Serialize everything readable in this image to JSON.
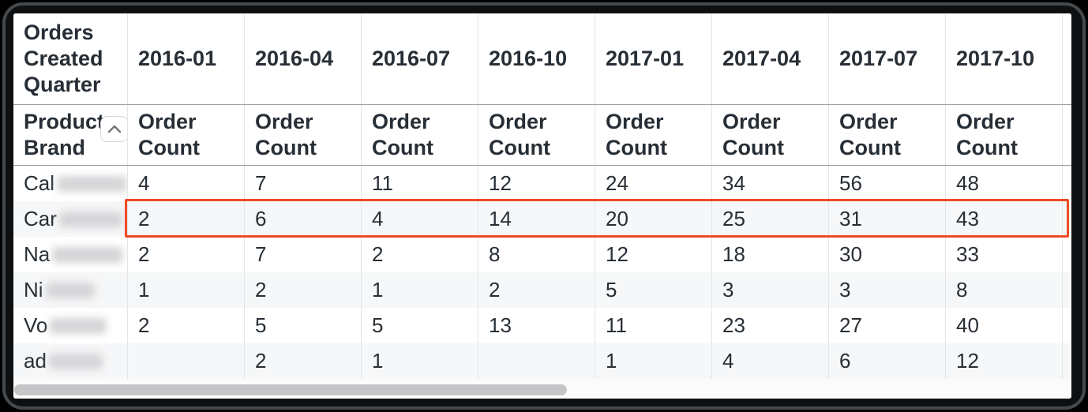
{
  "table": {
    "corner_header": "Orders Created Quarter",
    "row_header": "Products Brand",
    "measure_label": "Order Count",
    "quarters": [
      "2016-01",
      "2016-04",
      "2016-07",
      "2016-10",
      "2017-01",
      "2017-04",
      "2017-07",
      "2017-10"
    ],
    "rows": [
      {
        "brand": "Cal",
        "redacted": true,
        "highlighted": false,
        "values": [
          "4",
          "7",
          "11",
          "12",
          "24",
          "34",
          "56",
          "48"
        ]
      },
      {
        "brand": "Car",
        "redacted": true,
        "highlighted": true,
        "values": [
          "2",
          "6",
          "4",
          "14",
          "20",
          "25",
          "31",
          "43"
        ]
      },
      {
        "brand": "Na",
        "redacted": true,
        "highlighted": false,
        "values": [
          "2",
          "7",
          "2",
          "8",
          "12",
          "18",
          "30",
          "33"
        ]
      },
      {
        "brand": "Ni",
        "redacted": true,
        "highlighted": false,
        "values": [
          "1",
          "2",
          "1",
          "2",
          "5",
          "3",
          "3",
          "8"
        ]
      },
      {
        "brand": "Vo",
        "redacted": true,
        "highlighted": false,
        "values": [
          "2",
          "5",
          "5",
          "13",
          "11",
          "23",
          "27",
          "40"
        ]
      },
      {
        "brand": "ad",
        "redacted": true,
        "highlighted": false,
        "values": [
          "",
          "2",
          "1",
          "",
          "1",
          "4",
          "6",
          "12"
        ]
      }
    ],
    "highlight_color": "#f04b23",
    "icons": {
      "sort": "chevron-up-icon"
    }
  }
}
